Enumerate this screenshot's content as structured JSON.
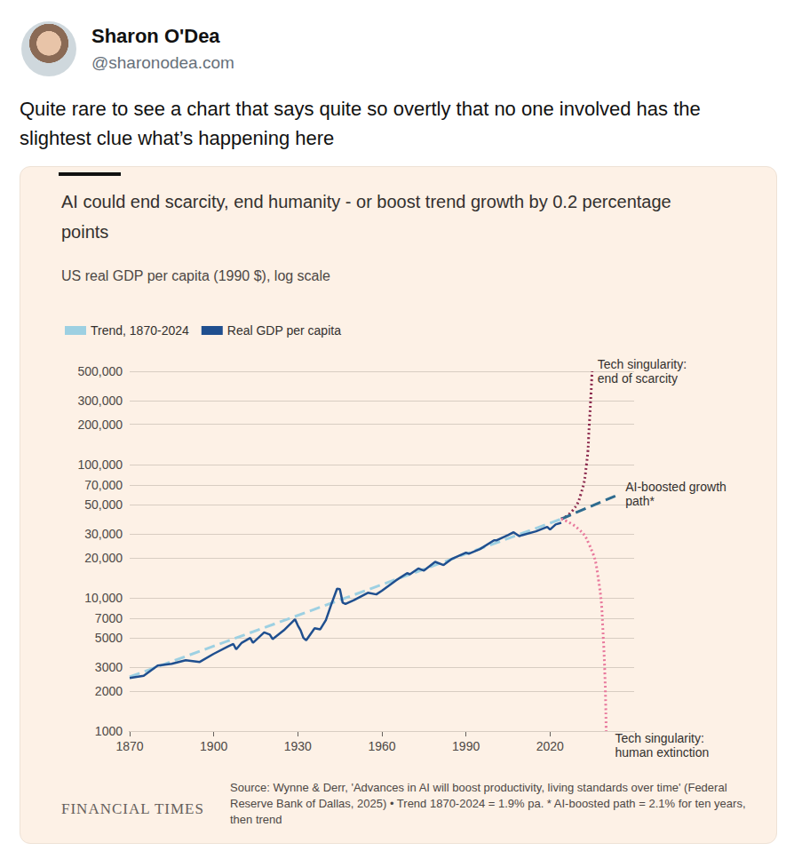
{
  "post": {
    "author": "Sharon O'Dea",
    "handle": "@sharonodea.com",
    "text": "Quite rare to see a chart that says quite so overtly that no one involved has the slightest clue what’s happening here"
  },
  "chart_data": {
    "type": "line",
    "title": "AI could end scarcity, end humanity - or boost trend growth by 0.2 percentage points",
    "subtitle": "US real GDP per capita (1990 $), log scale",
    "brand": "FINANCIAL TIMES",
    "source": "Source: Wynne & Derr, 'Advances in AI will boost productivity, living standards over time' (Federal Reserve Bank of Dallas, 2025) • Trend 1870-2024 = 1.9% pa. * AI-boosted path = 2.1% for ten years, then trend",
    "log": "y",
    "grid": true,
    "legend": "top-left",
    "xlim": [
      1870,
      2050
    ],
    "xticks": [
      1870,
      1900,
      1930,
      1960,
      1990,
      2020
    ],
    "ylim": [
      1000,
      500000
    ],
    "yticks": [
      1000,
      2000,
      3000,
      5000,
      7000,
      {
        "value": 10000,
        "label": "10,000"
      },
      {
        "value": 20000,
        "label": "20,000"
      },
      {
        "value": 30000,
        "label": "30,000"
      },
      {
        "value": 50000,
        "label": "50,000"
      },
      {
        "value": 70000,
        "label": "70,000"
      },
      {
        "value": 100000,
        "label": "100,000"
      },
      {
        "value": 200000,
        "label": "200,000"
      },
      {
        "value": 300000,
        "label": "300,000"
      },
      {
        "value": 500000,
        "label": "500,000"
      }
    ],
    "series": [
      {
        "name": "Trend, 1870-2024",
        "color": "#9dd0e2",
        "line_style": "dashed",
        "x": [
          1870,
          2024
        ],
        "values": [
          2550,
          39000
        ]
      },
      {
        "name": "Real GDP per capita",
        "color": "#1f4f8f",
        "line_style": "solid",
        "x": [
          1870,
          1875,
          1880,
          1885,
          1890,
          1895,
          1900,
          1905,
          1907,
          1908,
          1910,
          1913,
          1914,
          1918,
          1920,
          1921,
          1925,
          1929,
          1930,
          1931,
          1932,
          1933,
          1936,
          1938,
          1940,
          1942,
          1944,
          1945,
          1946,
          1947,
          1950,
          1955,
          1958,
          1960,
          1965,
          1969,
          1970,
          1973,
          1975,
          1979,
          1982,
          1985,
          1990,
          1991,
          1995,
          2000,
          2001,
          2005,
          2007,
          2009,
          2010,
          2015,
          2019,
          2020,
          2022,
          2024
        ],
        "values": [
          2500,
          2600,
          3100,
          3200,
          3400,
          3300,
          3800,
          4300,
          4500,
          4100,
          4600,
          5000,
          4600,
          5500,
          5300,
          4900,
          5700,
          6900,
          6200,
          5700,
          5000,
          4800,
          5900,
          5800,
          6800,
          9000,
          11700,
          11600,
          9200,
          9000,
          9600,
          10900,
          10600,
          11300,
          13500,
          15300,
          15000,
          16600,
          16000,
          18600,
          17600,
          19600,
          21800,
          21400,
          23200,
          27000,
          27000,
          29500,
          31000,
          29000,
          29500,
          31500,
          34000,
          32500,
          35500,
          36500
        ]
      }
    ],
    "annotations": [
      {
        "text": "Tech singularity: end of scarcity",
        "color": "#8c2a4e",
        "line_style": "dotted",
        "x": [
          2024,
          2028,
          2031,
          2033,
          2034,
          2035
        ],
        "values": [
          39000,
          45000,
          60000,
          100000,
          200000,
          500000
        ]
      },
      {
        "text": "AI-boosted growth path*",
        "color": "#2e6b8f",
        "line_style": "dashed",
        "x": [
          2024,
          2034,
          2045
        ],
        "values": [
          39000,
          48000,
          60000
        ]
      },
      {
        "text": "Tech singularity: human extinction",
        "color": "#e8789c",
        "line_style": "dotted",
        "x": [
          2024,
          2030,
          2034,
          2037,
          2039,
          2040
        ],
        "values": [
          39000,
          33000,
          25000,
          15000,
          5000,
          1000
        ]
      }
    ]
  }
}
